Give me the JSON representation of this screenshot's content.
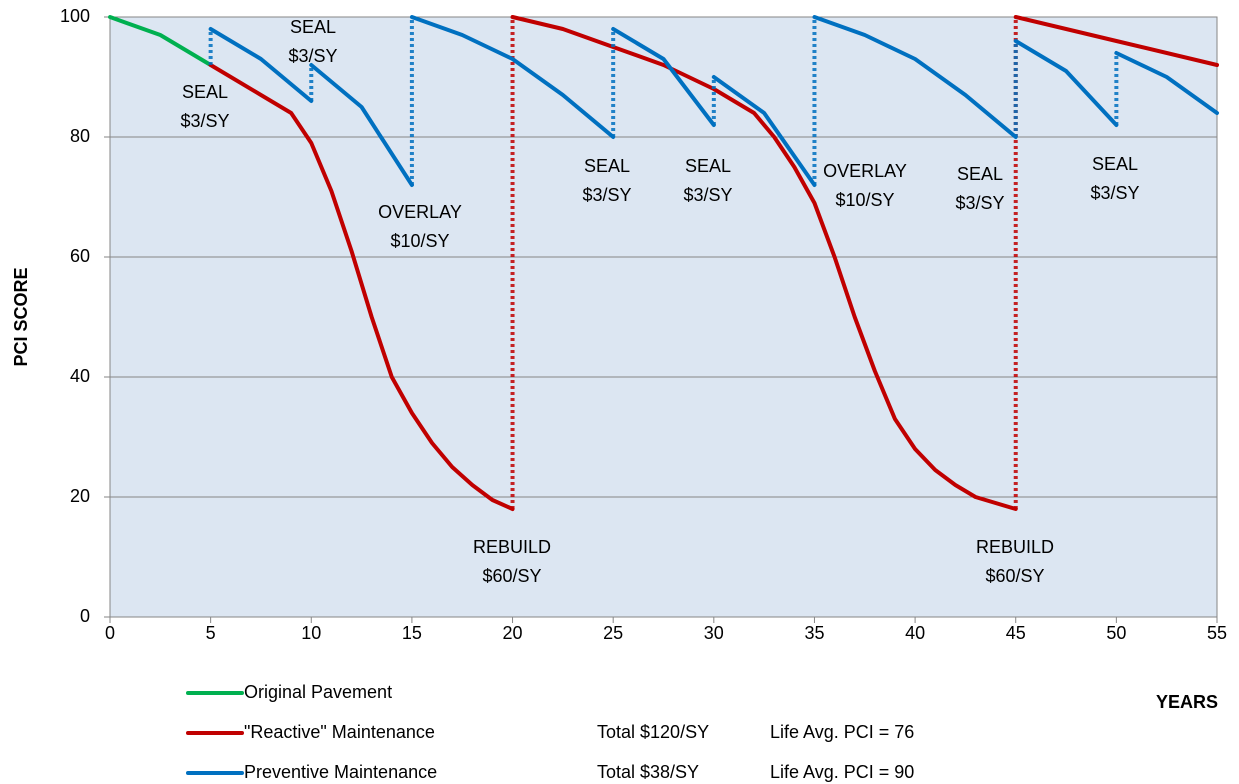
{
  "chart_data": {
    "type": "line",
    "xlabel": "YEARS",
    "ylabel": "PCI SCORE",
    "xlim": [
      0,
      55
    ],
    "ylim": [
      0,
      100
    ],
    "xticks": [
      0,
      5,
      10,
      15,
      20,
      25,
      30,
      35,
      40,
      45,
      50,
      55
    ],
    "yticks": [
      0,
      20,
      40,
      60,
      80,
      100
    ],
    "grid": true,
    "series": [
      {
        "name": "Original Pavement",
        "color": "#00b050",
        "x": [
          0,
          2.5,
          5
        ],
        "values": [
          100,
          97,
          92
        ]
      },
      {
        "name": "\"Reactive\" Maintenance",
        "color": "#c00000",
        "total": "Total $120/SY",
        "life_avg": "Life Avg. PCI = 76",
        "x": [
          5,
          7.5,
          9,
          10,
          11,
          12,
          13,
          14,
          15,
          16,
          17,
          18,
          19,
          20,
          20,
          22.5,
          25,
          27.5,
          30,
          32,
          33,
          34,
          35,
          36,
          37,
          38,
          39,
          40,
          41,
          42,
          43,
          45,
          45,
          50,
          55
        ],
        "values": [
          92,
          87,
          84,
          79,
          71,
          61,
          50,
          40,
          34,
          29,
          25,
          22,
          19.5,
          18,
          100,
          98,
          95,
          92,
          88,
          84,
          80,
          75,
          69,
          60,
          50,
          41,
          33,
          28,
          24.5,
          22,
          20,
          18,
          100,
          96,
          92
        ]
      },
      {
        "name": "Preventive Maintenance",
        "color": "#0070c0",
        "total": "Total $38/SY",
        "life_avg": "Life Avg. PCI = 90",
        "x": [
          5,
          5,
          7.5,
          10,
          10,
          12.5,
          15,
          15,
          17.5,
          20,
          22.5,
          25,
          25,
          27.5,
          30,
          30,
          32.5,
          35,
          35,
          37.5,
          40,
          42.5,
          45,
          45,
          47.5,
          50,
          50,
          52.5,
          55
        ],
        "values": [
          92,
          98,
          93,
          86,
          92,
          85,
          72,
          100,
          97,
          93,
          87,
          80,
          98,
          93,
          82,
          90,
          84,
          72,
          100,
          97,
          93,
          87,
          80,
          96,
          91,
          82,
          94,
          90,
          84
        ]
      }
    ],
    "annotations": [
      [
        "SEAL",
        "$3/SY"
      ],
      [
        "SEAL",
        "$3/SY"
      ],
      [
        "OVERLAY",
        "$10/SY"
      ],
      [
        "REBUILD",
        "$60/SY"
      ],
      [
        "SEAL",
        "$3/SY"
      ],
      [
        "SEAL",
        "$3/SY"
      ],
      [
        "OVERLAY",
        "$10/SY"
      ],
      [
        "SEAL",
        "$3/SY"
      ],
      [
        "REBUILD",
        "$60/SY"
      ],
      [
        "SEAL",
        "$3/SY"
      ]
    ]
  }
}
